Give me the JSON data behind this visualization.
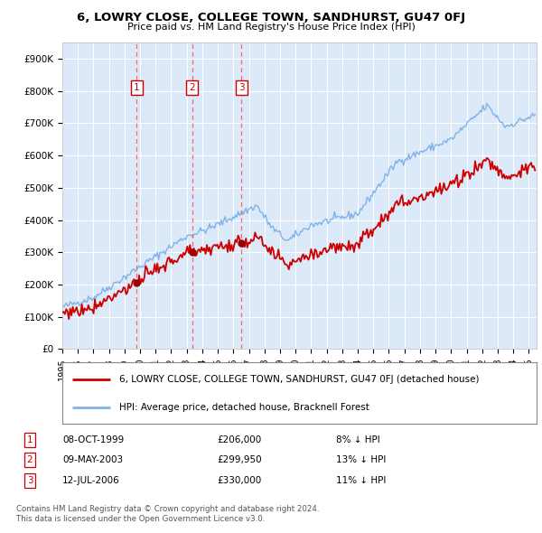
{
  "title": "6, LOWRY CLOSE, COLLEGE TOWN, SANDHURST, GU47 0FJ",
  "subtitle": "Price paid vs. HM Land Registry's House Price Index (HPI)",
  "legend_line1": "6, LOWRY CLOSE, COLLEGE TOWN, SANDHURST, GU47 0FJ (detached house)",
  "legend_line2": "HPI: Average price, detached house, Bracknell Forest",
  "footer1": "Contains HM Land Registry data © Crown copyright and database right 2024.",
  "footer2": "This data is licensed under the Open Government Licence v3.0.",
  "sales": [
    {
      "num": 1,
      "date": "08-OCT-1999",
      "price": 206000,
      "hpi_pct": "8% ↓ HPI",
      "x_year": 1999.77
    },
    {
      "num": 2,
      "date": "09-MAY-2003",
      "price": 299950,
      "hpi_pct": "13% ↓ HPI",
      "x_year": 2003.36
    },
    {
      "num": 3,
      "date": "12-JUL-2006",
      "price": 330000,
      "hpi_pct": "11% ↓ HPI",
      "x_year": 2006.53
    }
  ],
  "ylim": [
    0,
    950000
  ],
  "yticks": [
    0,
    100000,
    200000,
    300000,
    400000,
    500000,
    600000,
    700000,
    800000,
    900000
  ],
  "ytick_labels": [
    "£0",
    "£100K",
    "£200K",
    "£300K",
    "£400K",
    "£500K",
    "£600K",
    "£700K",
    "£800K",
    "£900K"
  ],
  "xlim_start": 1995.0,
  "xlim_end": 2025.5,
  "plot_bg_color": "#dce9f8",
  "red_line_color": "#cc0000",
  "blue_line_color": "#7fb3e8",
  "sale_marker_color": "#990000",
  "dashed_line_color": "#ff6666",
  "box_color": "#cc0000",
  "grid_color": "#ffffff",
  "hpi_anchors_t": [
    1995.0,
    1997.0,
    2000.0,
    2003.0,
    2004.5,
    2007.5,
    2008.5,
    2009.5,
    2011.0,
    2014.0,
    2016.5,
    2020.0,
    2022.3,
    2023.5,
    2025.4
  ],
  "hpi_anchors_v": [
    130000,
    160000,
    255000,
    350000,
    375000,
    445000,
    375000,
    335000,
    385000,
    420000,
    580000,
    650000,
    755000,
    690000,
    725000
  ]
}
